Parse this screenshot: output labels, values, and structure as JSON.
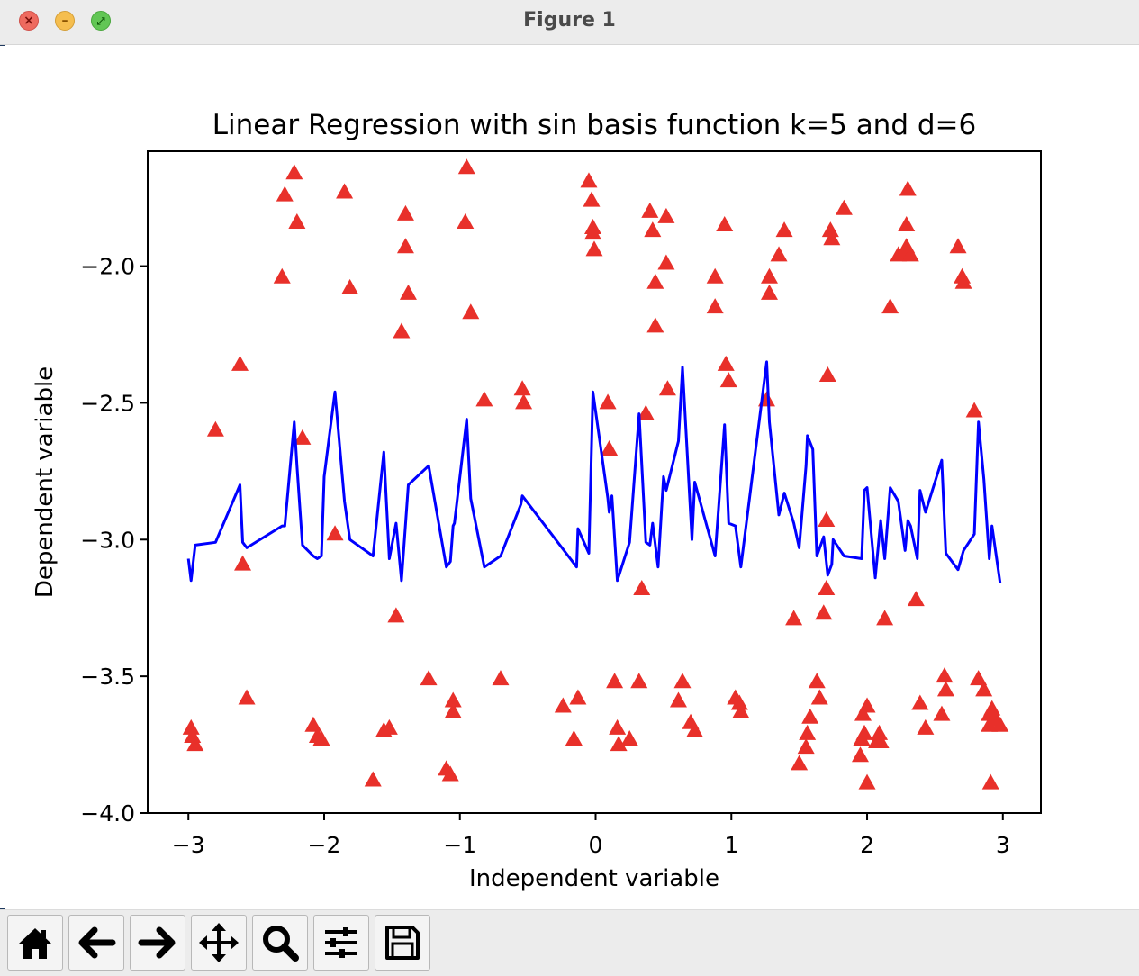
{
  "window": {
    "title": "Figure 1"
  },
  "toolbar": {
    "buttons": [
      {
        "name": "home-button",
        "icon": "home-icon"
      },
      {
        "name": "back-button",
        "icon": "arrow-left-icon"
      },
      {
        "name": "forward-button",
        "icon": "arrow-right-icon"
      },
      {
        "name": "pan-button",
        "icon": "move-icon"
      },
      {
        "name": "zoom-button",
        "icon": "magnifier-icon"
      },
      {
        "name": "configure-subplots-button",
        "icon": "sliders-icon"
      },
      {
        "name": "save-button",
        "icon": "floppy-disk-icon"
      }
    ]
  },
  "chart_data": {
    "type": "scatter",
    "title": "Linear Regression with sin basis function k=5 and d=6",
    "xlabel": "Independent variable",
    "ylabel": "Dependent variable",
    "xlim": [
      -3.3,
      3.28
    ],
    "ylim": [
      -4.0,
      -1.58
    ],
    "xticks": [
      {
        "value": -3,
        "label": "−3"
      },
      {
        "value": -2,
        "label": "−2"
      },
      {
        "value": -1,
        "label": "−1"
      },
      {
        "value": 0,
        "label": "0"
      },
      {
        "value": 1,
        "label": "1"
      },
      {
        "value": 2,
        "label": "2"
      },
      {
        "value": 3,
        "label": "3"
      }
    ],
    "yticks": [
      {
        "value": -4.0,
        "label": "−4.0"
      },
      {
        "value": -3.5,
        "label": "−3.5"
      },
      {
        "value": -3.0,
        "label": "−3.0"
      },
      {
        "value": -2.5,
        "label": "−2.5"
      },
      {
        "value": -2.0,
        "label": "−2.0"
      }
    ],
    "grid": false,
    "series": [
      {
        "kind": "scatter",
        "marker": "triangle",
        "color": "#e8302a",
        "points": [
          [
            -2.98,
            -3.69
          ],
          [
            -2.97,
            -3.72
          ],
          [
            -2.95,
            -3.75
          ],
          [
            -2.8,
            -2.6
          ],
          [
            -2.62,
            -2.36
          ],
          [
            -2.6,
            -3.09
          ],
          [
            -2.57,
            -3.58
          ],
          [
            -2.31,
            -2.04
          ],
          [
            -2.29,
            -1.74
          ],
          [
            -2.22,
            -1.66
          ],
          [
            -2.2,
            -1.84
          ],
          [
            -2.16,
            -2.63
          ],
          [
            -2.08,
            -3.68
          ],
          [
            -2.05,
            -3.72
          ],
          [
            -2.02,
            -3.73
          ],
          [
            -1.92,
            -2.98
          ],
          [
            -1.85,
            -1.73
          ],
          [
            -1.81,
            -2.08
          ],
          [
            -1.64,
            -3.88
          ],
          [
            -1.56,
            -3.7
          ],
          [
            -1.52,
            -3.69
          ],
          [
            -1.47,
            -3.28
          ],
          [
            -1.43,
            -2.24
          ],
          [
            -1.4,
            -1.93
          ],
          [
            -1.4,
            -1.81
          ],
          [
            -1.38,
            -2.1
          ],
          [
            -1.23,
            -3.51
          ],
          [
            -1.1,
            -3.84
          ],
          [
            -1.07,
            -3.86
          ],
          [
            -1.05,
            -3.59
          ],
          [
            -1.05,
            -3.63
          ],
          [
            -0.96,
            -1.84
          ],
          [
            -0.95,
            -1.64
          ],
          [
            -0.92,
            -2.17
          ],
          [
            -0.82,
            -2.49
          ],
          [
            -0.7,
            -3.51
          ],
          [
            -0.54,
            -2.45
          ],
          [
            -0.53,
            -2.5
          ],
          [
            -0.24,
            -3.61
          ],
          [
            -0.16,
            -3.73
          ],
          [
            -0.13,
            -3.58
          ],
          [
            -0.05,
            -1.69
          ],
          [
            -0.03,
            -1.76
          ],
          [
            -0.02,
            -1.86
          ],
          [
            -0.02,
            -1.88
          ],
          [
            -0.01,
            -1.94
          ],
          [
            0.09,
            -2.5
          ],
          [
            0.1,
            -2.67
          ],
          [
            0.14,
            -3.52
          ],
          [
            0.16,
            -3.69
          ],
          [
            0.17,
            -3.75
          ],
          [
            0.25,
            -3.73
          ],
          [
            0.32,
            -3.52
          ],
          [
            0.34,
            -3.18
          ],
          [
            0.37,
            -2.54
          ],
          [
            0.4,
            -1.8
          ],
          [
            0.42,
            -1.87
          ],
          [
            0.44,
            -2.06
          ],
          [
            0.44,
            -2.22
          ],
          [
            0.52,
            -1.82
          ],
          [
            0.52,
            -1.99
          ],
          [
            0.53,
            -2.45
          ],
          [
            0.61,
            -3.59
          ],
          [
            0.64,
            -3.52
          ],
          [
            0.7,
            -3.67
          ],
          [
            0.73,
            -3.7
          ],
          [
            0.88,
            -2.04
          ],
          [
            0.88,
            -2.15
          ],
          [
            0.95,
            -1.85
          ],
          [
            0.96,
            -2.36
          ],
          [
            0.98,
            -2.42
          ],
          [
            1.03,
            -3.58
          ],
          [
            1.06,
            -3.6
          ],
          [
            1.07,
            -3.63
          ],
          [
            1.26,
            -2.49
          ],
          [
            1.28,
            -2.04
          ],
          [
            1.28,
            -2.1
          ],
          [
            1.35,
            -1.96
          ],
          [
            1.39,
            -1.87
          ],
          [
            1.46,
            -3.29
          ],
          [
            1.5,
            -3.82
          ],
          [
            1.55,
            -3.76
          ],
          [
            1.56,
            -3.71
          ],
          [
            1.58,
            -3.65
          ],
          [
            1.63,
            -3.52
          ],
          [
            1.65,
            -3.58
          ],
          [
            1.68,
            -3.27
          ],
          [
            1.7,
            -2.93
          ],
          [
            1.7,
            -3.18
          ],
          [
            1.71,
            -2.4
          ],
          [
            1.73,
            -1.87
          ],
          [
            1.74,
            -1.9
          ],
          [
            1.83,
            -1.79
          ],
          [
            1.95,
            -3.79
          ],
          [
            1.96,
            -3.73
          ],
          [
            1.97,
            -3.64
          ],
          [
            1.98,
            -3.71
          ],
          [
            2.0,
            -3.61
          ],
          [
            2.0,
            -3.89
          ],
          [
            2.07,
            -3.74
          ],
          [
            2.09,
            -3.71
          ],
          [
            2.1,
            -3.74
          ],
          [
            2.13,
            -3.29
          ],
          [
            2.17,
            -2.15
          ],
          [
            2.23,
            -1.96
          ],
          [
            2.27,
            -1.95
          ],
          [
            2.29,
            -1.85
          ],
          [
            2.29,
            -1.93
          ],
          [
            2.3,
            -1.72
          ],
          [
            2.32,
            -1.96
          ],
          [
            2.36,
            -3.22
          ],
          [
            2.39,
            -3.6
          ],
          [
            2.43,
            -3.69
          ],
          [
            2.55,
            -3.64
          ],
          [
            2.57,
            -3.5
          ],
          [
            2.58,
            -3.55
          ],
          [
            2.67,
            -1.93
          ],
          [
            2.7,
            -2.04
          ],
          [
            2.71,
            -2.06
          ],
          [
            2.79,
            -2.53
          ],
          [
            2.82,
            -3.51
          ],
          [
            2.86,
            -3.55
          ],
          [
            2.9,
            -3.64
          ],
          [
            2.9,
            -3.68
          ],
          [
            2.91,
            -3.89
          ],
          [
            2.92,
            -3.62
          ],
          [
            2.95,
            -3.66
          ],
          [
            2.98,
            -3.68
          ]
        ]
      },
      {
        "kind": "line",
        "color": "#0000ff",
        "points": [
          [
            -3.0,
            -3.07
          ],
          [
            -2.98,
            -3.15
          ],
          [
            -2.95,
            -3.02
          ],
          [
            -2.8,
            -3.01
          ],
          [
            -2.62,
            -2.8
          ],
          [
            -2.6,
            -3.01
          ],
          [
            -2.57,
            -3.03
          ],
          [
            -2.31,
            -2.95
          ],
          [
            -2.29,
            -2.95
          ],
          [
            -2.22,
            -2.57
          ],
          [
            -2.2,
            -2.73
          ],
          [
            -2.16,
            -3.02
          ],
          [
            -2.08,
            -3.06
          ],
          [
            -2.05,
            -3.07
          ],
          [
            -2.02,
            -3.06
          ],
          [
            -2.0,
            -2.77
          ],
          [
            -1.92,
            -2.46
          ],
          [
            -1.85,
            -2.86
          ],
          [
            -1.81,
            -3.0
          ],
          [
            -1.64,
            -3.06
          ],
          [
            -1.56,
            -2.68
          ],
          [
            -1.52,
            -3.07
          ],
          [
            -1.47,
            -2.94
          ],
          [
            -1.43,
            -3.15
          ],
          [
            -1.38,
            -2.8
          ],
          [
            -1.23,
            -2.73
          ],
          [
            -1.1,
            -3.1
          ],
          [
            -1.07,
            -3.08
          ],
          [
            -1.05,
            -2.95
          ],
          [
            -1.04,
            -2.94
          ],
          [
            -0.95,
            -2.56
          ],
          [
            -0.92,
            -2.85
          ],
          [
            -0.82,
            -3.1
          ],
          [
            -0.7,
            -3.06
          ],
          [
            -0.55,
            -2.87
          ],
          [
            -0.54,
            -2.84
          ],
          [
            -0.14,
            -3.1
          ],
          [
            -0.13,
            -2.96
          ],
          [
            -0.05,
            -3.05
          ],
          [
            -0.02,
            -2.46
          ],
          [
            0.09,
            -2.85
          ],
          [
            0.1,
            -2.9
          ],
          [
            0.12,
            -2.84
          ],
          [
            0.16,
            -3.15
          ],
          [
            0.25,
            -3.01
          ],
          [
            0.32,
            -2.54
          ],
          [
            0.37,
            -3.01
          ],
          [
            0.4,
            -3.02
          ],
          [
            0.42,
            -2.94
          ],
          [
            0.46,
            -3.1
          ],
          [
            0.5,
            -2.77
          ],
          [
            0.52,
            -2.82
          ],
          [
            0.61,
            -2.64
          ],
          [
            0.64,
            -2.37
          ],
          [
            0.71,
            -3.0
          ],
          [
            0.73,
            -2.79
          ],
          [
            0.88,
            -3.06
          ],
          [
            0.95,
            -2.58
          ],
          [
            0.98,
            -2.94
          ],
          [
            1.03,
            -2.95
          ],
          [
            1.07,
            -3.1
          ],
          [
            1.26,
            -2.35
          ],
          [
            1.28,
            -2.57
          ],
          [
            1.35,
            -2.91
          ],
          [
            1.39,
            -2.83
          ],
          [
            1.46,
            -2.94
          ],
          [
            1.5,
            -3.03
          ],
          [
            1.55,
            -2.73
          ],
          [
            1.56,
            -2.62
          ],
          [
            1.6,
            -2.67
          ],
          [
            1.63,
            -3.06
          ],
          [
            1.68,
            -2.99
          ],
          [
            1.71,
            -3.13
          ],
          [
            1.74,
            -3.09
          ],
          [
            1.75,
            -3.0
          ],
          [
            1.83,
            -3.06
          ],
          [
            1.96,
            -3.07
          ],
          [
            1.98,
            -2.82
          ],
          [
            2.0,
            -2.81
          ],
          [
            2.06,
            -3.14
          ],
          [
            2.1,
            -2.93
          ],
          [
            2.13,
            -3.07
          ],
          [
            2.17,
            -2.81
          ],
          [
            2.23,
            -2.86
          ],
          [
            2.28,
            -3.04
          ],
          [
            2.3,
            -2.93
          ],
          [
            2.32,
            -2.95
          ],
          [
            2.37,
            -3.07
          ],
          [
            2.39,
            -2.82
          ],
          [
            2.43,
            -2.9
          ],
          [
            2.55,
            -2.71
          ],
          [
            2.58,
            -3.05
          ],
          [
            2.67,
            -3.11
          ],
          [
            2.71,
            -3.04
          ],
          [
            2.79,
            -2.98
          ],
          [
            2.82,
            -2.57
          ],
          [
            2.86,
            -2.78
          ],
          [
            2.9,
            -3.07
          ],
          [
            2.92,
            -2.95
          ],
          [
            2.98,
            -3.16
          ]
        ]
      }
    ]
  }
}
